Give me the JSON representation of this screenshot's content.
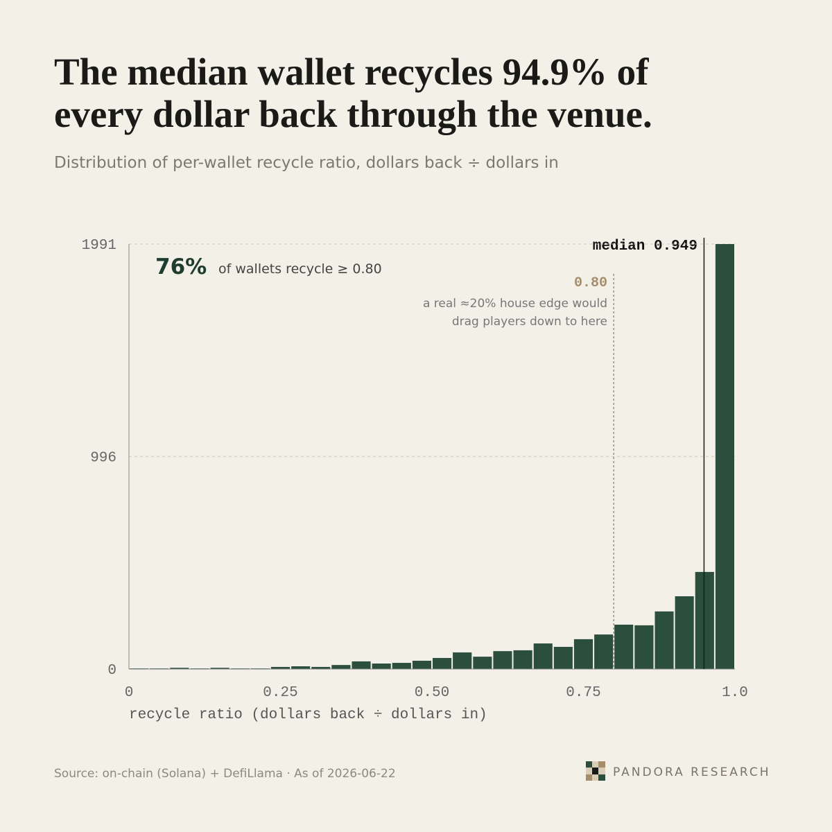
{
  "chart_data": {
    "type": "histogram",
    "title": [
      "The median wallet recycles 94.9% of",
      "every dollar back through the venue."
    ],
    "subtitle": "Distribution of per-wallet recycle ratio, dollars back ÷ dollars in",
    "x_label": "recycle ratio (dollars back ÷ dollars in)",
    "bins": [
      0,
      0.0333,
      0.0667,
      0.1,
      0.1333,
      0.1667,
      0.2,
      0.2333,
      0.2667,
      0.3,
      0.3333,
      0.3667,
      0.4,
      0.4333,
      0.4667,
      0.5,
      0.5333,
      0.5667,
      0.6,
      0.6333,
      0.6667,
      0.7,
      0.7333,
      0.7667,
      0.8,
      0.8333,
      0.8667,
      0.9,
      0.9333,
      0.9667,
      1
    ],
    "values": [
      3,
      3,
      6,
      3,
      6,
      3,
      3,
      10,
      13,
      10,
      19,
      36,
      26,
      29,
      39,
      52,
      78,
      58,
      84,
      88,
      120,
      104,
      140,
      162,
      208,
      205,
      270,
      341,
      455,
      1991
    ],
    "color": "#2b4f3c",
    "xlim": [
      0,
      1
    ],
    "xticks": [
      0,
      0.25,
      {
        "value": 0.5,
        "label": "0.50"
      },
      0.75,
      {
        "value": 1,
        "label": "1.0"
      }
    ],
    "ylim": [
      0,
      1991
    ],
    "yticks": [
      0,
      996,
      1991
    ],
    "grid": true,
    "stat": {
      "value": 76,
      "label": "76%",
      "text": "of wallets recycle ≥ 0.80"
    },
    "threshold": {
      "x": 0.8,
      "label": "0.80",
      "note": [
        "a real ≈20% house edge would",
        "drag players down to here"
      ]
    },
    "median": {
      "x": 0.949,
      "label": "median 0.949"
    },
    "source": "Source: on-chain (Solana) + DefiLlama · As of 2026-06-22",
    "brand": "PANDORA RESEARCH"
  }
}
